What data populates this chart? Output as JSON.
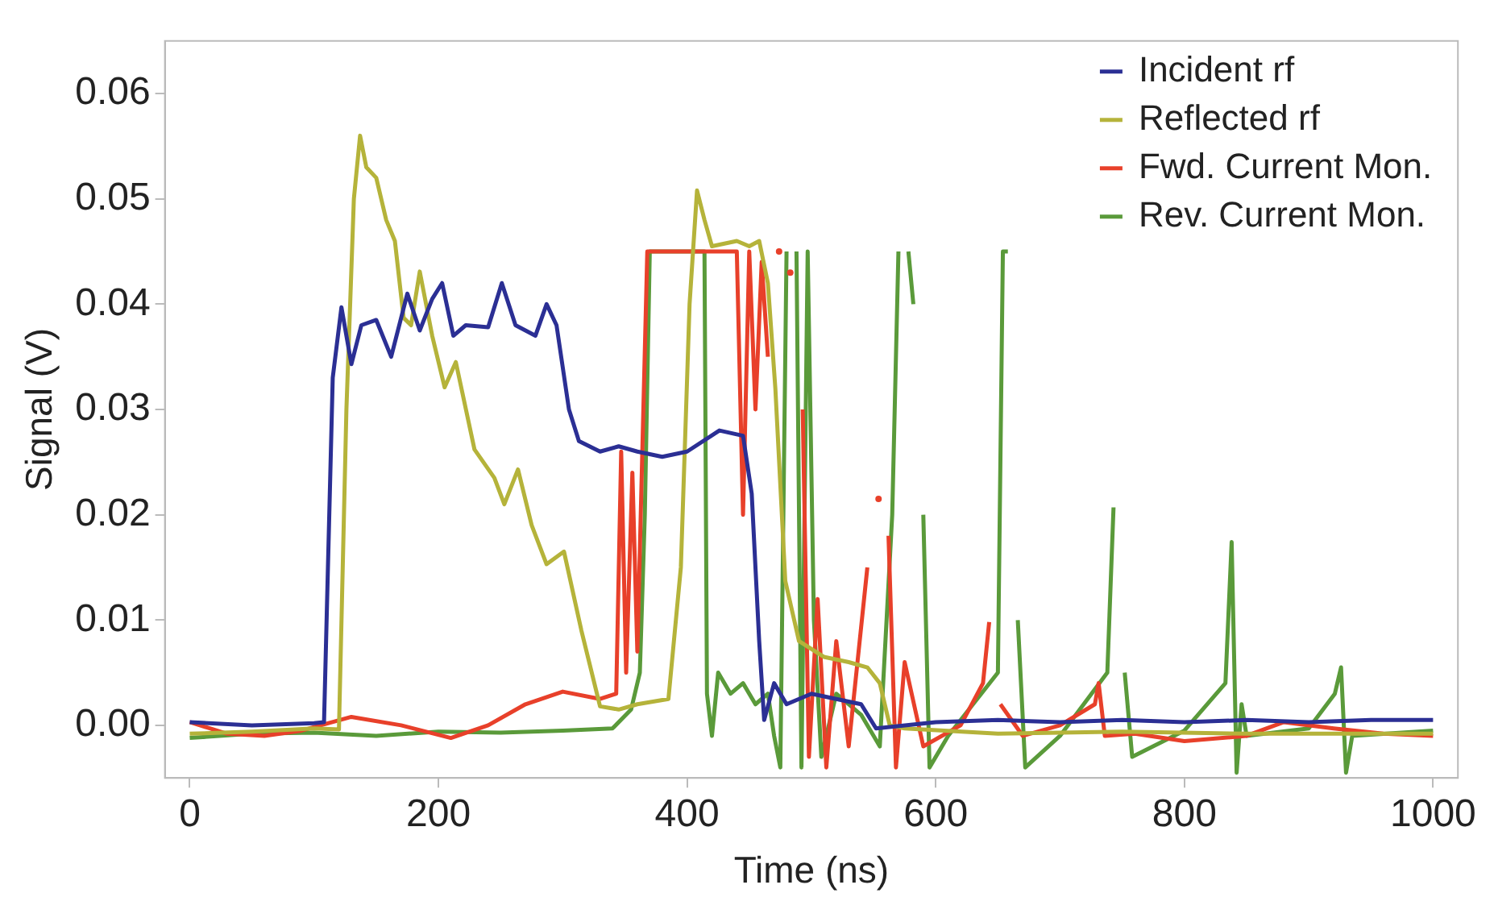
{
  "chart_data": {
    "type": "line",
    "xlabel": "Time (ns)",
    "ylabel": "Signal (V)",
    "xlim": [
      -20,
      1020
    ],
    "ylim": [
      -0.005,
      0.065
    ],
    "xticks": [
      0,
      200,
      400,
      600,
      800,
      1000
    ],
    "yticks": [
      {
        "value": 0,
        "label": "0.00"
      },
      0.01,
      0.02,
      0.03,
      0.04,
      0.05,
      0.06
    ],
    "grid": false,
    "legend": "top right",
    "marker": "none",
    "line_style": "solid",
    "series": [
      {
        "name": "Incident rf",
        "color": "#2b2f94",
        "x": [
          0,
          50,
          100,
          108,
          115,
          122,
          130,
          138,
          150,
          162,
          175,
          185,
          195,
          203,
          212,
          222,
          240,
          251,
          262,
          278,
          287,
          295,
          305,
          313,
          330,
          345,
          360,
          380,
          400,
          426,
          445,
          452,
          458,
          462,
          470,
          480,
          500,
          520,
          540,
          552,
          600,
          650,
          700,
          750,
          800,
          850,
          900,
          950,
          1000
        ],
        "values": [
          0.0003,
          0,
          0.0002,
          0.0003,
          0.033,
          0.0397,
          0.0343,
          0.038,
          0.0385,
          0.035,
          0.041,
          0.0375,
          0.0405,
          0.042,
          0.037,
          0.038,
          0.0378,
          0.042,
          0.038,
          0.037,
          0.04,
          0.038,
          0.03,
          0.027,
          0.026,
          0.0265,
          0.026,
          0.0255,
          0.026,
          0.028,
          0.0275,
          0.022,
          0.008,
          0.0005,
          0.004,
          0.002,
          0.003,
          0.0025,
          0.002,
          -0.0003,
          0.0003,
          0.0005,
          0.0003,
          0.0005,
          0.0003,
          0.0005,
          0.0003,
          0.0005,
          0.0005
        ]
      },
      {
        "name": "Reflected rf",
        "color": "#b5b33a",
        "x": [
          0,
          50,
          100,
          120,
          126,
          132,
          137,
          142,
          150,
          158,
          165,
          172,
          178,
          185,
          195,
          205,
          214,
          229,
          245,
          253,
          264,
          275,
          287,
          301,
          315,
          330,
          345,
          360,
          385,
          395,
          402,
          408,
          414,
          420,
          440,
          450,
          458,
          465,
          471,
          479,
          490,
          510,
          530,
          545,
          555,
          563,
          575,
          650,
          750,
          850,
          1000
        ],
        "values": [
          -0.0008,
          -0.0006,
          -0.0003,
          -0.0004,
          0.03,
          0.05,
          0.056,
          0.053,
          0.052,
          0.048,
          0.046,
          0.0387,
          0.038,
          0.0431,
          0.037,
          0.0321,
          0.0345,
          0.0262,
          0.0235,
          0.021,
          0.0243,
          0.019,
          0.0153,
          0.0165,
          0.009,
          0.0018,
          0.0015,
          0.002,
          0.0025,
          0.015,
          0.04,
          0.0508,
          0.048,
          0.0455,
          0.046,
          0.0455,
          0.046,
          0.042,
          0.032,
          0.0137,
          0.008,
          0.0065,
          0.006,
          0.0055,
          0.004,
          0,
          -0.0003,
          -0.0008,
          -0.0006,
          -0.0008,
          -0.0008
        ]
      },
      {
        "name": "Fwd. Current Mon.",
        "color": "#e8402a",
        "x": [
          0,
          30,
          60,
          90,
          130,
          170,
          210,
          240,
          270,
          300,
          330,
          343,
          347,
          351,
          356,
          360,
          364,
          368,
          380,
          400,
          420,
          440,
          445,
          450,
          455,
          460,
          465,
          470,
          474,
          478,
          483,
          487,
          493,
          498,
          505,
          512,
          520,
          530,
          545,
          550,
          554,
          558,
          562,
          568,
          575,
          590,
          620,
          638,
          643,
          647,
          652,
          670,
          700,
          728,
          731,
          736,
          760,
          800,
          850,
          880,
          920,
          960,
          1000
        ],
        "values": [
          0.0003,
          -0.0008,
          -0.001,
          -0.0005,
          0.0008,
          0,
          -0.0012,
          0,
          0.002,
          0.0032,
          0.0025,
          0.003,
          0.026,
          0.005,
          0.024,
          0.007,
          0.026,
          0.045,
          0.045,
          0.045,
          0.045,
          0.045,
          0.02,
          0.045,
          0.03,
          0.044,
          0.035,
          null,
          0.045,
          null,
          0.043,
          null,
          0.03,
          -0.003,
          0.012,
          -0.004,
          0.008,
          -0.002,
          0.015,
          null,
          0.0215,
          null,
          0.018,
          -0.004,
          0.006,
          -0.002,
          0,
          0.004,
          0.0098,
          null,
          0.002,
          -0.001,
          0,
          0.002,
          0.004,
          -0.001,
          -0.0008,
          -0.0015,
          -0.001,
          0.0003,
          -0.0003,
          -0.0008,
          -0.001
        ]
      },
      {
        "name": "Rev. Current Mon.",
        "color": "#5a9a3a",
        "x": [
          0,
          50,
          100,
          150,
          200,
          250,
          300,
          340,
          355,
          362,
          366,
          370,
          375,
          410,
          414,
          416,
          420,
          425,
          435,
          445,
          455,
          465,
          470,
          475,
          480,
          484,
          488,
          492,
          497,
          502,
          508,
          520,
          540,
          555,
          565,
          570,
          574,
          578,
          582,
          586,
          590,
          595,
          610,
          650,
          654,
          658,
          662,
          666,
          672,
          700,
          738,
          743,
          747,
          752,
          758,
          800,
          833,
          838,
          842,
          846,
          850,
          900,
          921,
          926,
          930,
          935,
          1000
        ],
        "values": [
          -0.0012,
          -0.0008,
          -0.0007,
          -0.001,
          -0.0006,
          -0.0007,
          -0.0005,
          -0.0003,
          0.0015,
          0.005,
          0.02,
          0.045,
          0.045,
          0.045,
          0.045,
          0.003,
          -0.001,
          0.005,
          0.003,
          0.004,
          0.002,
          0.003,
          -0.001,
          -0.004,
          0.045,
          null,
          0.045,
          -0.004,
          0.045,
          0.01,
          -0.003,
          0.003,
          0.001,
          -0.002,
          0.02,
          0.045,
          null,
          0.045,
          0.04,
          null,
          0.02,
          -0.004,
          -0.001,
          0.005,
          0.045,
          0.045,
          null,
          0.01,
          -0.004,
          -0.001,
          0.005,
          0.0207,
          null,
          0.005,
          -0.003,
          -0.0005,
          0.004,
          0.0174,
          -0.0045,
          0.002,
          -0.001,
          -0.0003,
          0.003,
          0.0055,
          -0.0045,
          -0.001,
          -0.0005
        ]
      }
    ]
  }
}
